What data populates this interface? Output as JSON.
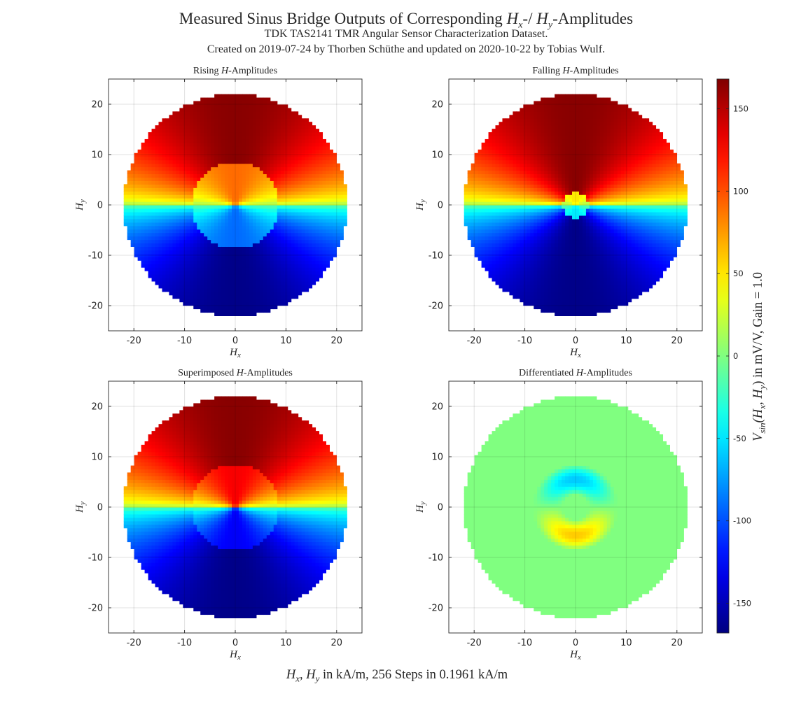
{
  "figure": {
    "title_prefix": "Measured Sinus Bridge Outputs of Corresponding ",
    "title_hx": "H",
    "title_hx_sub": "x",
    "title_mid": "-/ ",
    "title_hy": "H",
    "title_hy_sub": "y",
    "title_suffix": "-Amplitudes",
    "subtitle_1": "TDK TAS2141 TMR Angular Sensor Characterization Dataset.",
    "subtitle_2": "Created on 2019-07-24 by Thorben Schüthe and updated on 2020-10-22 by Tobias Wulf.",
    "footer_prefix": "",
    "footer_text": ", 256 Steps in 0.1961 kA/m",
    "footer_unit_text": " in kA/m",
    "colorbar_label_main": "V",
    "colorbar_label_sub": "sin",
    "colorbar_label_args": "(H",
    "colorbar_label_rest": ") in mV/V, Gain = 1.0"
  },
  "chart_data": [
    {
      "type": "heatmap",
      "title_prefix": "Rising ",
      "title_h": "H",
      "title_suffix": "-Amplitudes",
      "xlabel": "H_x",
      "ylabel": "H_y",
      "xlim": [
        -25,
        25
      ],
      "ylim": [
        -25,
        25
      ],
      "xticks": [
        -20,
        -10,
        0,
        10,
        20
      ],
      "yticks": [
        -20,
        -10,
        0,
        10,
        20
      ],
      "grid": true,
      "field_radius": 22,
      "inner_radius": 8.5,
      "peak_value": 165,
      "variant": "rising"
    },
    {
      "type": "heatmap",
      "title_prefix": "Falling ",
      "title_h": "H",
      "title_suffix": "-Amplitudes",
      "xlabel": "H_x",
      "ylabel": "H_y",
      "xlim": [
        -25,
        25
      ],
      "ylim": [
        -25,
        25
      ],
      "xticks": [
        -20,
        -10,
        0,
        10,
        20
      ],
      "yticks": [
        -20,
        -10,
        0,
        10,
        20
      ],
      "grid": true,
      "field_radius": 22,
      "inner_radius": 2.5,
      "peak_value": 165,
      "variant": "falling"
    },
    {
      "type": "heatmap",
      "title_prefix": "Superimposed ",
      "title_h": "H",
      "title_suffix": "-Amplitudes",
      "xlabel": "H_x",
      "ylabel": "H_y",
      "xlim": [
        -25,
        25
      ],
      "ylim": [
        -25,
        25
      ],
      "xticks": [
        -20,
        -10,
        0,
        10,
        20
      ],
      "yticks": [
        -20,
        -10,
        0,
        10,
        20
      ],
      "grid": true,
      "field_radius": 22,
      "inner_radius": 8.5,
      "peak_value": 165,
      "variant": "superimposed"
    },
    {
      "type": "heatmap",
      "title_prefix": "Differentiated ",
      "title_h": "H",
      "title_suffix": "-Amplitudes",
      "xlabel": "H_x",
      "ylabel": "H_y",
      "xlim": [
        -25,
        25
      ],
      "ylim": [
        -25,
        25
      ],
      "xticks": [
        -20,
        -10,
        0,
        10,
        20
      ],
      "yticks": [
        -20,
        -10,
        0,
        10,
        20
      ],
      "grid": true,
      "field_radius": 22,
      "inner_radius": 8.5,
      "peak_value": 165,
      "variant": "differentiated"
    }
  ],
  "colorbar": {
    "colormap": "jet",
    "range": [
      -168,
      168
    ],
    "ticks": [
      150,
      100,
      50,
      0,
      -50,
      -100,
      -150
    ]
  }
}
